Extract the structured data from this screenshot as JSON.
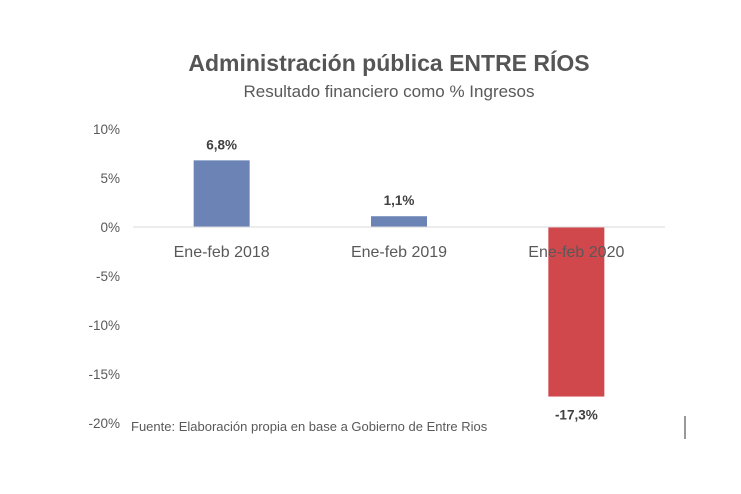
{
  "chart_data": {
    "type": "bar",
    "title": "Administración pública ENTRE RÍOS",
    "subtitle": "Resultado financiero como % Ingresos",
    "categories": [
      "Ene-feb 2018",
      "Ene-feb 2019",
      "Ene-feb 2020"
    ],
    "values": [
      6.8,
      1.1,
      -17.3
    ],
    "data_labels": [
      "6,8%",
      "1,1%",
      "-17,3%"
    ],
    "bar_colors": [
      "#6b84b5",
      "#6b84b5",
      "#d0474c"
    ],
    "ylim": [
      -20,
      10
    ],
    "yticks": [
      10,
      5,
      0,
      -5,
      -10,
      -15,
      -20
    ],
    "ytick_labels": [
      "10%",
      "5%",
      "0%",
      "-5%",
      "-10%",
      "-15%",
      "-20%"
    ],
    "xlabel": "",
    "ylabel": "",
    "grid": false,
    "source": "Fuente: Elaboración propia en base a Gobierno de Entre Rios"
  }
}
